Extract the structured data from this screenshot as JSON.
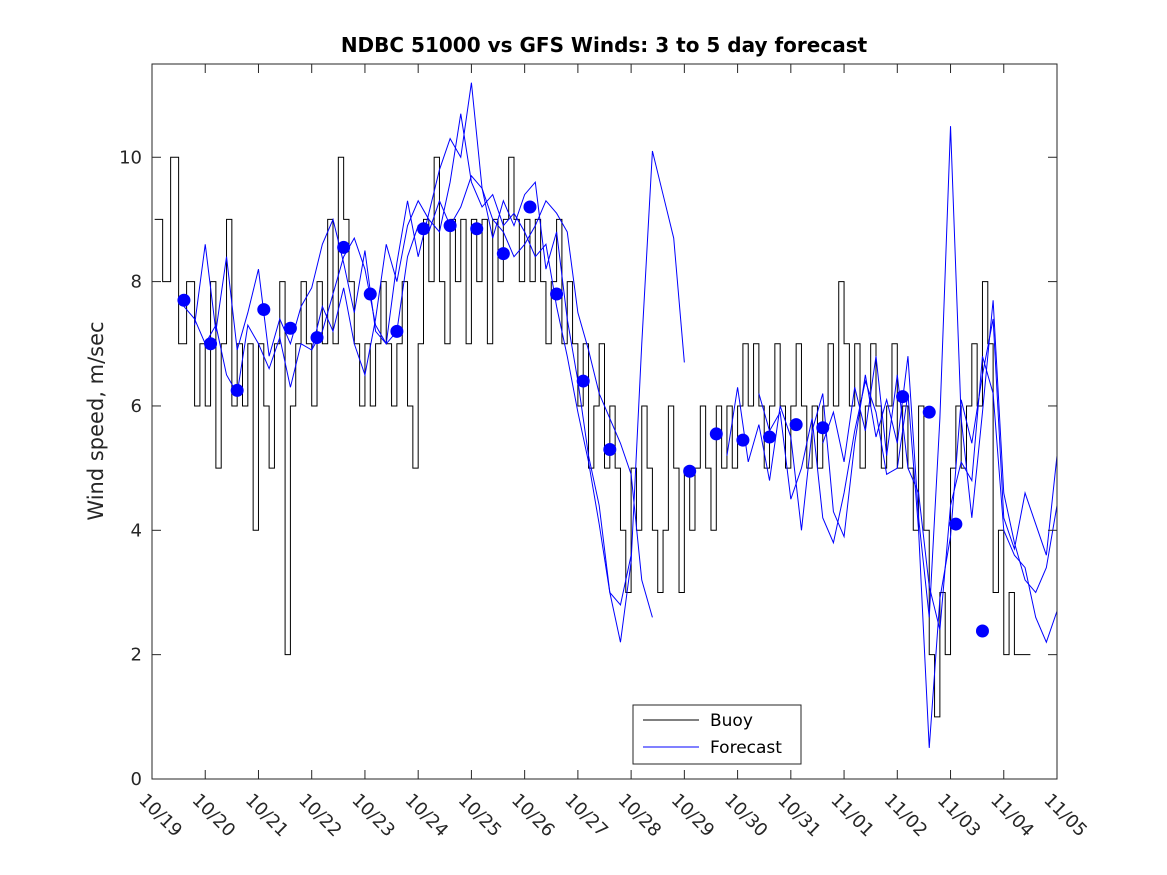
{
  "chart_data": {
    "type": "line",
    "title": "NDBC 51000 vs GFS Winds: 3 to 5 day forecast",
    "xlabel": "",
    "ylabel": "Wind speed, m/sec",
    "xlim": [
      0,
      17
    ],
    "ylim": [
      0,
      11.5
    ],
    "x_ticks": [
      0,
      1,
      2,
      3,
      4,
      5,
      6,
      7,
      8,
      9,
      10,
      11,
      12,
      13,
      14,
      15,
      16,
      17
    ],
    "x_tick_labels": [
      "10/19",
      "10/20",
      "10/21",
      "10/22",
      "10/23",
      "10/24",
      "10/25",
      "10/26",
      "10/27",
      "10/28",
      "10/29",
      "10/30",
      "10/31",
      "11/01",
      "11/02",
      "11/03",
      "11/04",
      "11/05"
    ],
    "y_ticks": [
      0,
      2,
      4,
      6,
      8,
      10
    ],
    "y_tick_labels": [
      "0",
      "2",
      "4",
      "6",
      "8",
      "10"
    ],
    "grid": false,
    "legend": {
      "position": "bottom-center",
      "entries": [
        "Buoy",
        "Forecast"
      ]
    },
    "colors": {
      "buoy": "#000000",
      "forecast": "#0000ff",
      "markers": "#0000ff"
    },
    "series": [
      {
        "name": "Buoy",
        "style": "step",
        "x": [
          0.05,
          0.2,
          0.35,
          0.5,
          0.65,
          0.8,
          0.9,
          1.0,
          1.1,
          1.2,
          1.3,
          1.4,
          1.5,
          1.6,
          1.7,
          1.8,
          1.9,
          2.0,
          2.1,
          2.2,
          2.3,
          2.4,
          2.5,
          2.6,
          2.7,
          2.8,
          2.9,
          3.0,
          3.1,
          3.2,
          3.3,
          3.4,
          3.5,
          3.6,
          3.7,
          3.8,
          3.9,
          4.0,
          4.1,
          4.2,
          4.3,
          4.4,
          4.5,
          4.6,
          4.7,
          4.8,
          4.9,
          5.0,
          5.1,
          5.2,
          5.3,
          5.4,
          5.5,
          5.6,
          5.7,
          5.8,
          5.9,
          6.0,
          6.1,
          6.2,
          6.3,
          6.4,
          6.5,
          6.6,
          6.7,
          6.8,
          6.9,
          7.0,
          7.1,
          7.2,
          7.3,
          7.4,
          7.5,
          7.6,
          7.7,
          7.8,
          7.9,
          8.0,
          8.1,
          8.2,
          8.3,
          8.4,
          8.5,
          8.6,
          8.7,
          8.8,
          8.9,
          9.0,
          9.1,
          9.2,
          9.3,
          9.4,
          9.5,
          9.6,
          9.7,
          9.8,
          9.9,
          10.0,
          10.1,
          10.2,
          10.3,
          10.4,
          10.5,
          10.6,
          10.7,
          10.8,
          10.9,
          11.0,
          11.1,
          11.2,
          11.3,
          11.4,
          11.5,
          11.6,
          11.7,
          11.8,
          11.9,
          12.0,
          12.1,
          12.2,
          12.3,
          12.4,
          12.5,
          12.6,
          12.7,
          12.8,
          12.9,
          13.0,
          13.1,
          13.2,
          13.3,
          13.4,
          13.5,
          13.6,
          13.7,
          13.8,
          13.9,
          14.0,
          14.1,
          14.2,
          14.3,
          14.4,
          14.5,
          14.6,
          14.7,
          14.8,
          14.9,
          15.0,
          15.1,
          15.2,
          15.3,
          15.4,
          15.5,
          15.6,
          15.7,
          15.8,
          15.9,
          16.0,
          16.1,
          16.2,
          16.3,
          16.4,
          16.5
        ],
        "values": [
          9,
          8,
          10,
          7,
          8,
          6,
          7,
          6,
          8,
          5,
          7,
          9,
          6,
          7,
          6,
          7,
          4,
          7,
          6,
          5,
          7,
          8,
          2,
          6,
          7,
          8,
          7,
          6,
          8,
          7,
          9,
          7,
          10,
          9,
          8,
          7,
          6,
          7,
          6,
          7,
          8,
          7,
          6,
          7,
          8,
          6,
          5,
          7,
          9,
          8,
          10,
          8,
          7,
          9,
          8,
          9,
          7,
          9,
          8,
          9,
          7,
          9,
          8,
          9,
          10,
          9,
          8,
          9,
          8,
          9,
          8,
          7,
          8,
          9,
          7,
          8,
          7,
          6,
          7,
          5,
          6,
          7,
          5,
          6,
          5,
          4,
          3,
          5,
          4,
          6,
          5,
          4,
          3,
          4,
          6,
          5,
          3,
          5,
          4,
          5,
          6,
          5,
          4,
          6,
          5,
          6,
          5,
          6,
          7,
          6,
          7,
          6,
          5,
          6,
          7,
          6,
          5,
          6,
          7,
          6,
          5,
          6,
          5,
          6,
          7,
          6,
          8,
          7,
          6,
          7,
          5,
          6,
          7,
          6,
          5,
          6,
          7,
          5,
          6,
          5,
          4,
          6,
          4,
          2,
          1,
          3,
          2,
          5,
          6,
          5,
          6,
          7,
          6,
          8,
          7,
          3,
          4,
          2,
          3,
          2,
          2,
          2,
          2
        ],
        "color": "#000000"
      },
      {
        "name": "Forecast",
        "style": "lines",
        "color": "#0000ff",
        "values_note": "multiple overlapping forecast runs",
        "runs": [
          {
            "x": [
              0.6,
              0.8,
              1.0,
              1.2,
              1.4,
              1.6,
              1.8,
              2.0,
              2.2,
              2.4,
              2.6,
              2.8,
              3.0,
              3.2,
              3.4,
              3.6,
              3.8,
              4.0,
              4.2,
              4.4,
              4.6,
              4.8,
              5.0,
              5.2,
              5.4,
              5.6,
              5.8,
              6.0,
              6.2,
              6.4,
              6.6,
              6.8,
              7.0,
              7.2,
              7.4,
              7.6,
              7.8,
              8.0,
              8.2,
              8.4,
              8.6,
              8.8,
              9.0,
              9.2,
              9.4
            ],
            "y": [
              7.6,
              7.4,
              7.0,
              7.3,
              6.5,
              6.2,
              7.3,
              7.0,
              6.6,
              7.1,
              6.3,
              7.0,
              6.9,
              7.2,
              7.8,
              8.4,
              8.7,
              8.2,
              7.3,
              7.0,
              7.2,
              8.4,
              8.9,
              8.8,
              9.3,
              8.9,
              9.2,
              9.7,
              9.5,
              9.0,
              8.8,
              8.4,
              8.6,
              8.9,
              9.3,
              9.1,
              8.8,
              7.5,
              6.9,
              6.2,
              5.8,
              5.4,
              4.9,
              3.2,
              2.6
            ]
          },
          {
            "x": [
              0.8,
              1.0,
              1.2,
              1.4,
              1.6,
              1.8,
              2.0,
              2.2,
              2.4,
              2.6,
              2.8,
              3.0,
              3.2,
              3.4,
              3.6,
              3.8,
              4.0,
              4.2,
              4.4,
              4.6,
              4.8,
              5.0,
              5.2,
              5.4,
              5.6,
              5.8,
              6.0,
              6.2,
              6.4,
              6.6,
              6.8,
              7.0,
              7.2,
              7.4,
              7.6,
              7.8,
              8.0,
              8.2,
              8.4,
              8.6,
              8.8,
              9.0
            ],
            "y": [
              7.3,
              8.6,
              7.2,
              8.4,
              6.9,
              7.5,
              8.2,
              6.8,
              7.4,
              7.0,
              7.6,
              7.9,
              8.6,
              9.0,
              8.3,
              7.5,
              8.5,
              7.2,
              7.0,
              8.3,
              9.3,
              8.4,
              9.1,
              9.8,
              10.3,
              10.0,
              11.2,
              9.5,
              8.7,
              9.3,
              8.9,
              9.4,
              9.6,
              8.2,
              8.8,
              7.4,
              6.4,
              5.2,
              4.4,
              3.0,
              2.8,
              3.6
            ]
          },
          {
            "x": [
              3.0,
              3.2,
              3.4,
              3.6,
              3.8,
              4.0,
              4.2,
              4.4,
              4.6,
              4.8,
              5.0,
              5.2,
              5.4,
              5.6,
              5.8,
              6.0,
              6.2,
              6.4,
              6.6,
              6.8,
              7.0,
              7.2,
              7.4,
              7.6,
              7.8,
              8.0,
              8.2,
              8.4,
              8.6,
              8.8,
              9.0,
              9.2,
              9.4,
              9.6,
              9.8,
              10.0
            ],
            "y": [
              6.9,
              7.6,
              7.2,
              7.9,
              7.0,
              6.5,
              7.4,
              8.6,
              8.0,
              8.9,
              9.3,
              9.0,
              8.8,
              9.6,
              10.7,
              9.6,
              9.2,
              9.4,
              8.9,
              9.1,
              8.8,
              8.4,
              8.6,
              7.6,
              6.8,
              5.9,
              5.1,
              4.1,
              3.0,
              2.2,
              3.5,
              7.0,
              10.1,
              9.4,
              8.7,
              6.7
            ]
          },
          {
            "x": [
              10.8,
              11.0,
              11.2,
              11.4,
              11.6,
              11.8,
              12.0,
              12.2,
              12.4,
              12.6,
              12.8,
              13.0,
              13.2,
              13.4,
              13.6,
              13.8,
              14.0,
              14.2,
              14.4,
              14.6,
              14.8,
              15.0,
              15.2,
              15.4,
              15.6,
              15.8,
              16.0,
              16.2,
              16.4,
              16.6,
              16.8,
              17.0
            ],
            "y": [
              5.2,
              6.3,
              5.1,
              5.7,
              4.8,
              6.0,
              5.5,
              4.0,
              5.6,
              6.2,
              4.3,
              3.9,
              5.4,
              6.5,
              5.5,
              6.1,
              5.4,
              6.8,
              4.2,
              2.6,
              5.8,
              10.5,
              5.8,
              4.2,
              5.9,
              7.7,
              4.6,
              3.8,
              3.2,
              3.0,
              3.4,
              4.4
            ]
          },
          {
            "x": [
              11.4,
              11.6,
              11.8,
              12.0,
              12.2,
              12.4,
              12.6,
              12.8,
              13.0,
              13.2,
              13.4,
              13.6,
              13.8,
              14.0,
              14.2,
              14.4,
              14.6,
              14.8,
              15.0,
              15.2,
              15.4,
              15.6,
              15.8,
              16.0,
              16.2,
              16.4,
              16.6,
              16.8,
              17.0
            ],
            "y": [
              6.2,
              5.6,
              5.9,
              4.5,
              5.0,
              5.8,
              4.2,
              3.8,
              4.6,
              5.6,
              6.4,
              5.9,
              4.9,
              5.0,
              6.2,
              4.0,
              0.5,
              2.9,
              3.9,
              6.1,
              5.4,
              6.5,
              7.4,
              4.2,
              3.7,
              4.6,
              4.1,
              3.6,
              5.2
            ]
          },
          {
            "x": [
              12.6,
              12.8,
              13.0,
              13.2,
              13.4,
              13.6,
              13.8,
              14.0,
              14.2,
              14.4,
              14.6,
              14.8,
              15.0,
              15.2,
              15.4,
              15.6,
              15.8,
              16.0,
              16.2,
              16.4,
              16.6,
              16.8,
              17.0
            ],
            "y": [
              5.4,
              5.9,
              5.1,
              6.3,
              5.6,
              6.8,
              5.2,
              6.5,
              5.0,
              4.6,
              3.1,
              2.4,
              4.4,
              5.1,
              4.8,
              6.8,
              6.2,
              4.0,
              3.6,
              3.4,
              2.6,
              2.2,
              2.7
            ]
          }
        ]
      },
      {
        "name": "Forecast mean",
        "style": "markers",
        "color": "#0000ff",
        "x": [
          0.6,
          1.1,
          1.6,
          2.1,
          2.6,
          3.1,
          3.6,
          4.1,
          4.6,
          5.1,
          5.6,
          6.1,
          6.6,
          7.1,
          7.6,
          8.1,
          8.6,
          10.1,
          10.6,
          11.1,
          11.6,
          12.1,
          12.6,
          14.1,
          14.6,
          15.1,
          15.6
        ],
        "values": [
          7.7,
          7.0,
          6.25,
          7.55,
          7.25,
          7.1,
          8.55,
          7.8,
          7.2,
          8.85,
          8.9,
          8.85,
          8.45,
          9.2,
          7.8,
          6.4,
          5.3,
          4.95,
          5.55,
          5.45,
          5.5,
          5.7,
          5.65,
          6.15,
          5.9,
          4.1,
          2.38
        ]
      }
    ]
  }
}
